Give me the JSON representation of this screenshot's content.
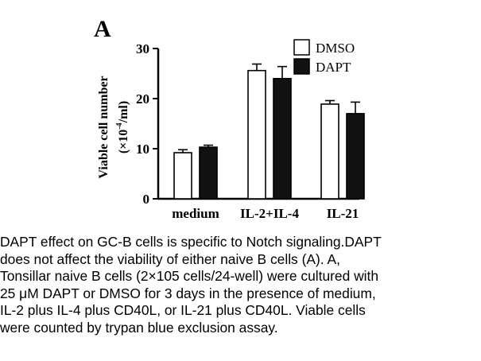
{
  "chart_data": {
    "type": "bar",
    "panel_label": "A",
    "title": "",
    "xlabel": "",
    "ylabel_line1": "Viable cell number",
    "ylabel_line2_prefix": "(×10",
    "ylabel_line2_exp": "-4",
    "ylabel_line2_suffix": "/ml)",
    "ylim": [
      0,
      30
    ],
    "yticks": [
      "0",
      "10",
      "20",
      "30"
    ],
    "ytick_values": [
      0,
      10,
      20,
      30
    ],
    "grid": false,
    "legend_position": "top-right",
    "categories": [
      "medium",
      "IL-2+IL-4",
      "IL-21"
    ],
    "series": [
      {
        "name": "DMSO",
        "color": "#ffffff",
        "values": [
          9.2,
          25.6,
          18.9
        ],
        "errors": [
          0.6,
          1.3,
          0.7
        ]
      },
      {
        "name": "DAPT",
        "color": "#111111",
        "values": [
          10.3,
          24.0,
          17.0
        ],
        "errors": [
          0.4,
          2.4,
          2.3
        ]
      }
    ]
  },
  "caption": "DAPT effect on GC-B cells is specific to Notch signaling.DAPT\ndoes not affect the viability of either naive B cells (A). A,\nTonsillar naive B cells (2×105 cells/24-well) were cultured with\n25 μM DAPT or DMSO for 3 days in the presence of medium,\nIL-2 plus IL-4 plus CD40L, or IL-21 plus CD40L. Viable cells\nwere counted by trypan blue exclusion assay."
}
